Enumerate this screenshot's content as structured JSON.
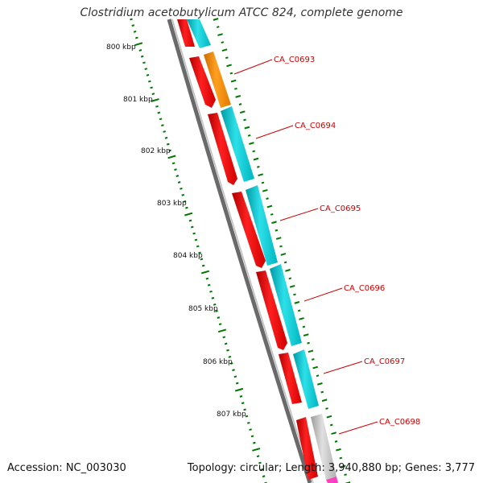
{
  "title": "Clostridium acetobutylicum ATCC 824, complete genome",
  "accession": "Accession: NC_003030",
  "topology": "Topology: circular; Length: 3,940,880 bp; Genes: 3,777",
  "ticks": [
    "800 kbp",
    "801 kbp",
    "802 kbp",
    "803 kbp",
    "804 kbp",
    "805 kbp",
    "806 kbp",
    "807 kbp"
  ],
  "genes": [
    "CA_C0693",
    "CA_C0694",
    "CA_C0695",
    "CA_C0696",
    "CA_C0697",
    "CA_C0698"
  ],
  "colors": {
    "cds_forward": "#ff0000",
    "cds_reverse": "#00c8d0",
    "orange_feature": "#ff8c00",
    "grey_feature": "#c0c0c0",
    "pink_feature": "#ff40c0",
    "backbone": "#777777",
    "ticks": "#007700",
    "gene_label": "#cc0000"
  }
}
